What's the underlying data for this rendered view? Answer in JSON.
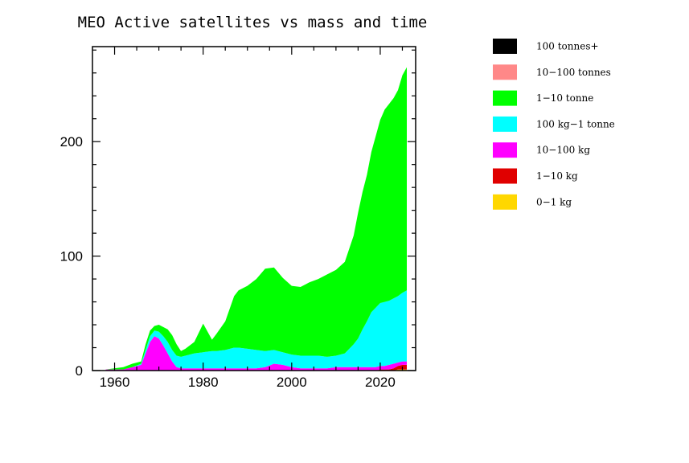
{
  "chart_data": {
    "type": "area",
    "stacked": true,
    "title": "MEO Active satellites vs mass and time",
    "xlabel": "",
    "ylabel": "",
    "xlim": [
      1955,
      2028
    ],
    "ylim": [
      0,
      283
    ],
    "xticks": [
      1960,
      1980,
      2000,
      2020
    ],
    "yticks": [
      0,
      100,
      200
    ],
    "legend_position": "right",
    "x": [
      1958,
      1962,
      1964,
      1966,
      1967,
      1968,
      1969,
      1970,
      1971,
      1972,
      1973,
      1974,
      1975,
      1976,
      1978,
      1980,
      1982,
      1983,
      1985,
      1987,
      1988,
      1990,
      1992,
      1994,
      1996,
      1998,
      2000,
      2002,
      2004,
      2006,
      2008,
      2010,
      2012,
      2014,
      2015,
      2016,
      2017,
      2018,
      2019,
      2020,
      2021,
      2022,
      2023,
      2024,
      2025,
      2026
    ],
    "series": [
      {
        "name": "0-1 kg",
        "color": "#ffd700",
        "values": [
          0,
          0,
          0,
          0,
          0,
          0,
          0,
          0,
          0,
          0,
          0,
          0,
          0,
          0,
          0,
          0,
          0,
          0,
          0,
          0,
          0,
          0,
          0,
          0,
          0,
          0,
          0,
          0,
          0,
          0,
          0,
          0,
          0,
          0,
          0,
          0,
          0,
          0,
          0,
          0,
          0,
          0,
          0,
          1,
          1,
          1
        ]
      },
      {
        "name": "1-10 kg",
        "color": "#e00000",
        "values": [
          0,
          0,
          0,
          0,
          0,
          0,
          0,
          0,
          0,
          0,
          0,
          0,
          0,
          0,
          0,
          0,
          0,
          0,
          0,
          0,
          0,
          0,
          0,
          0,
          0,
          0,
          0,
          0,
          0,
          0,
          0,
          0,
          0,
          0,
          0,
          0,
          0,
          0,
          0,
          1,
          1,
          1,
          2,
          3,
          4,
          4
        ]
      },
      {
        "name": "10-100 kg",
        "color": "#ff00ff",
        "values": [
          1,
          1,
          3,
          5,
          15,
          25,
          30,
          28,
          22,
          15,
          8,
          3,
          2,
          2,
          2,
          2,
          2,
          2,
          2,
          2,
          2,
          2,
          2,
          3,
          6,
          5,
          3,
          2,
          2,
          2,
          2,
          3,
          3,
          3,
          3,
          3,
          3,
          3,
          3,
          3,
          3,
          4,
          4,
          3,
          3,
          3
        ]
      },
      {
        "name": "100 kg-1 tonne",
        "color": "#00ffff",
        "values": [
          0,
          0,
          0,
          1,
          3,
          5,
          5,
          6,
          8,
          10,
          10,
          10,
          10,
          11,
          13,
          14,
          15,
          15,
          16,
          18,
          18,
          17,
          16,
          14,
          12,
          11,
          11,
          11,
          11,
          11,
          10,
          10,
          12,
          20,
          25,
          33,
          40,
          48,
          52,
          55,
          56,
          56,
          57,
          58,
          60,
          62
        ]
      },
      {
        "name": "1-10 tonne",
        "color": "#00ff00",
        "values": [
          0,
          2,
          3,
          2,
          5,
          5,
          4,
          6,
          8,
          11,
          13,
          10,
          5,
          6,
          10,
          25,
          10,
          15,
          25,
          45,
          50,
          55,
          62,
          72,
          72,
          65,
          60,
          60,
          64,
          67,
          72,
          75,
          80,
          95,
          110,
          120,
          128,
          140,
          150,
          160,
          168,
          172,
          175,
          180,
          190,
          195
        ]
      },
      {
        "name": "10-100 tonnes",
        "color": "#ff8888",
        "values": [
          0,
          0,
          0,
          0,
          0,
          0,
          0,
          0,
          0,
          0,
          0,
          0,
          0,
          0,
          0,
          0,
          0,
          0,
          0,
          0,
          0,
          0,
          0,
          0,
          0,
          0,
          0,
          0,
          0,
          0,
          0,
          0,
          0,
          0,
          0,
          0,
          0,
          0,
          0,
          0,
          0,
          0,
          0,
          0,
          0,
          0
        ]
      },
      {
        "name": "100 tonnes+",
        "color": "#000000",
        "values": [
          0,
          0,
          0,
          0,
          0,
          0,
          0,
          0,
          0,
          0,
          0,
          0,
          0,
          0,
          0,
          0,
          0,
          0,
          0,
          0,
          0,
          0,
          0,
          0,
          0,
          0,
          0,
          0,
          0,
          0,
          0,
          0,
          0,
          0,
          0,
          0,
          0,
          0,
          0,
          0,
          0,
          0,
          0,
          0,
          0,
          0
        ]
      }
    ],
    "legend": [
      {
        "label": "100 tonnes+",
        "color": "#000000"
      },
      {
        "label": "10−100 tonnes",
        "color": "#ff8888"
      },
      {
        "label": "1−10 tonne",
        "color": "#00ff00"
      },
      {
        "label": "100 kg−1 tonne",
        "color": "#00ffff"
      },
      {
        "label": "10−100 kg",
        "color": "#ff00ff"
      },
      {
        "label": "1−10 kg",
        "color": "#e00000"
      },
      {
        "label": "0−1 kg",
        "color": "#ffd700"
      }
    ]
  }
}
